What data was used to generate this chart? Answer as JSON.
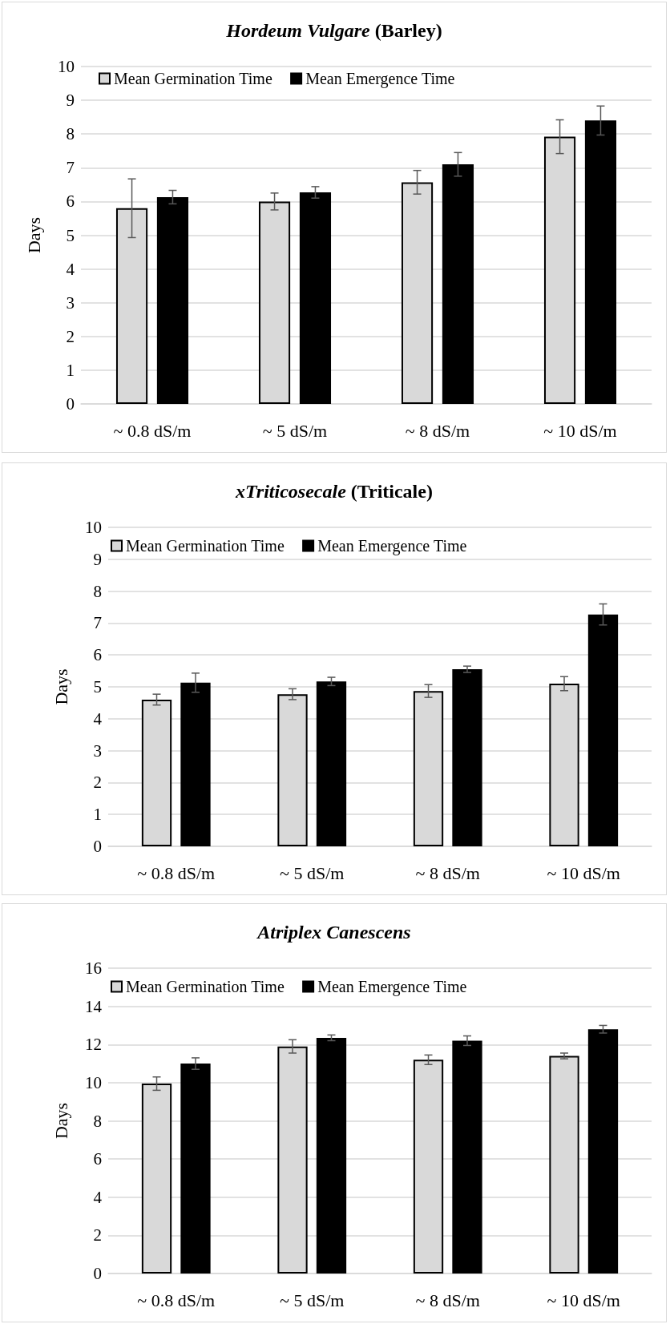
{
  "chart_data": [
    {
      "type": "bar",
      "title": "Hordeum Vulgare (Barley)",
      "ylabel": "Days",
      "categories": [
        "~ 0.8 dS/m",
        "~ 5 dS/m",
        "~ 8 dS/m",
        "~ 10 dS/m"
      ],
      "ylim": [
        0,
        10
      ],
      "yticks": [
        0,
        1,
        2,
        3,
        4,
        5,
        6,
        7,
        8,
        9,
        10
      ],
      "grid": "y",
      "legend": "top left",
      "series": [
        {
          "name": "Mean Germination Time",
          "color": "#d9d9d9",
          "values": [
            5.8,
            6.0,
            6.57,
            7.92
          ],
          "errors": [
            0.87,
            0.25,
            0.35,
            0.5
          ]
        },
        {
          "name": "Mean Emergence Time",
          "color": "#000000",
          "values": [
            6.13,
            6.27,
            7.1,
            8.4
          ],
          "errors": [
            0.2,
            0.17,
            0.35,
            0.43
          ]
        }
      ]
    },
    {
      "type": "bar",
      "title": "xTriticosecale (Triticale)",
      "ylabel": "Days",
      "categories": [
        "~ 0.8 dS/m",
        "~ 5 dS/m",
        "~ 8 dS/m",
        "~ 10 dS/m"
      ],
      "ylim": [
        0,
        10
      ],
      "yticks": [
        0,
        1,
        2,
        3,
        4,
        5,
        6,
        7,
        8,
        9,
        10
      ],
      "grid": "y",
      "legend": "top left",
      "series": [
        {
          "name": "Mean Germination Time",
          "color": "#d9d9d9",
          "values": [
            4.6,
            4.77,
            4.87,
            5.1
          ],
          "errors": [
            0.17,
            0.17,
            0.2,
            0.22
          ]
        },
        {
          "name": "Mean Emergence Time",
          "color": "#000000",
          "values": [
            5.13,
            5.17,
            5.55,
            7.27
          ],
          "errors": [
            0.3,
            0.13,
            0.1,
            0.33
          ]
        }
      ]
    },
    {
      "type": "bar",
      "title": "Atriplex Canescens",
      "ylabel": "Days",
      "categories": [
        "~ 0.8 dS/m",
        "~ 5 dS/m",
        "~ 8 dS/m",
        "~ 10 dS/m"
      ],
      "ylim": [
        0,
        16
      ],
      "yticks": [
        0,
        2,
        4,
        6,
        8,
        10,
        12,
        14,
        16
      ],
      "grid": "y",
      "legend": "top left",
      "series": [
        {
          "name": "Mean Germination Time",
          "color": "#d9d9d9",
          "values": [
            9.95,
            11.9,
            11.2,
            11.4
          ],
          "errors": [
            0.35,
            0.35,
            0.25,
            0.15
          ]
        },
        {
          "name": "Mean Emergence Time",
          "color": "#000000",
          "values": [
            11.0,
            12.35,
            12.2,
            12.8
          ],
          "errors": [
            0.3,
            0.15,
            0.25,
            0.2
          ]
        }
      ]
    }
  ]
}
